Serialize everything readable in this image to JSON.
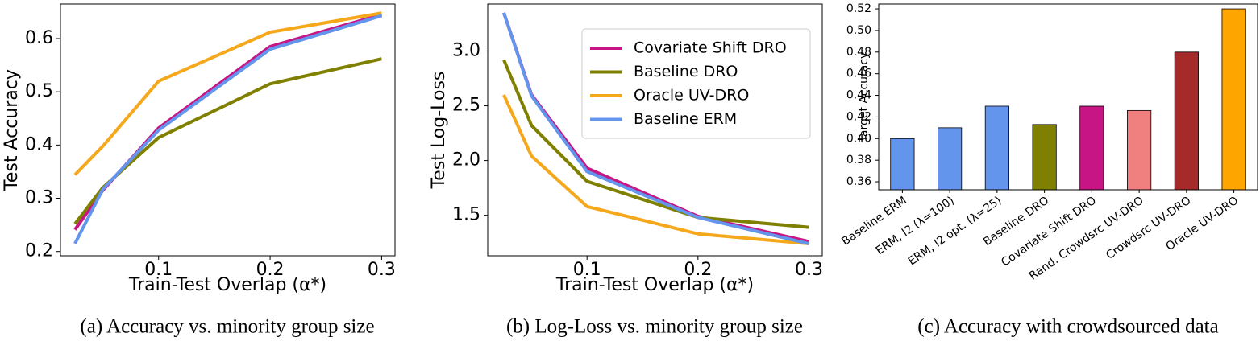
{
  "chart_data": [
    {
      "type": "line",
      "caption": "(a) Accuracy vs. minority group size",
      "x_label": "Train-Test Overlap (α*)",
      "y_label": "Test Accuracy",
      "x": [
        0.025,
        0.05,
        0.1,
        0.2,
        0.3
      ],
      "xlim": [
        0.012,
        0.312
      ],
      "xticks": [
        0.1,
        0.2,
        0.3
      ],
      "ylim": [
        0.192,
        0.665
      ],
      "yticks": [
        0.2,
        0.3,
        0.4,
        0.5,
        0.6
      ],
      "series": [
        {
          "name": "Covariate Shift DRO",
          "color": "#c71585",
          "values": [
            0.241,
            0.315,
            0.432,
            0.585,
            0.645
          ]
        },
        {
          "name": "Baseline DRO",
          "color": "#808000",
          "values": [
            0.252,
            0.32,
            0.414,
            0.515,
            0.562
          ]
        },
        {
          "name": "Oracle UV-DRO",
          "color": "#f5a81c",
          "values": [
            0.344,
            0.398,
            0.52,
            0.612,
            0.648
          ]
        },
        {
          "name": "Baseline ERM",
          "color": "#6495ed",
          "values": [
            0.215,
            0.317,
            0.428,
            0.58,
            0.643
          ]
        }
      ]
    },
    {
      "type": "line",
      "caption": "(b) Log-Loss vs. minority group size",
      "x_label": "Train-Test Overlap (α*)",
      "y_label": "Test Log-Loss",
      "x": [
        0.025,
        0.05,
        0.1,
        0.2,
        0.3
      ],
      "xlim": [
        0.0105,
        0.312
      ],
      "xticks": [
        0.1,
        0.2,
        0.3
      ],
      "ylim": [
        1.13,
        3.43
      ],
      "yticks": [
        1.5,
        {
          "value": 2,
          "label": "2.0"
        },
        2.5,
        {
          "value": 3,
          "label": "3.0"
        }
      ],
      "legend": "upper right",
      "series": [
        {
          "name": "Covariate Shift DRO",
          "color": "#c71585",
          "values": [
            3.35,
            2.6,
            1.93,
            1.49,
            1.26
          ]
        },
        {
          "name": "Baseline DRO",
          "color": "#808000",
          "values": [
            2.92,
            2.32,
            1.81,
            1.48,
            1.39
          ]
        },
        {
          "name": "Oracle UV-DRO",
          "color": "#f5a81c",
          "values": [
            2.6,
            2.04,
            1.58,
            1.33,
            1.24
          ]
        },
        {
          "name": "Baseline ERM",
          "color": "#6495ed",
          "values": [
            3.35,
            2.59,
            1.9,
            1.48,
            1.24
          ]
        }
      ]
    },
    {
      "type": "bar",
      "caption": "(c) Accuracy with crowdsourced data",
      "y_label": "Target Accuracy",
      "categories": [
        "Baseline ERM",
        "ERM, l2 (λ=100)",
        "ERM, l2 opt. (λ=25)",
        "Baseline DRO",
        "Covariate Shift DRO",
        "Rand. Crowdsrc UV-DRO",
        "Crowdsrc UV-DRO",
        "Oracle UV-DRO"
      ],
      "values": [
        0.4,
        0.41,
        0.43,
        0.413,
        0.43,
        0.426,
        0.48,
        0.52
      ],
      "colors": [
        "#6495ed",
        "#6495ed",
        "#6495ed",
        "#808000",
        "#c71585",
        "#f08080",
        "#a52a2a",
        "#ffa500"
      ],
      "ylim": [
        0.3526,
        0.5245
      ],
      "yticks": [
        0.36,
        0.38,
        {
          "value": 0.4,
          "label": "0.40"
        },
        0.42,
        0.44,
        0.46,
        0.48,
        {
          "value": 0.5,
          "label": "0.50"
        },
        0.52
      ]
    }
  ]
}
